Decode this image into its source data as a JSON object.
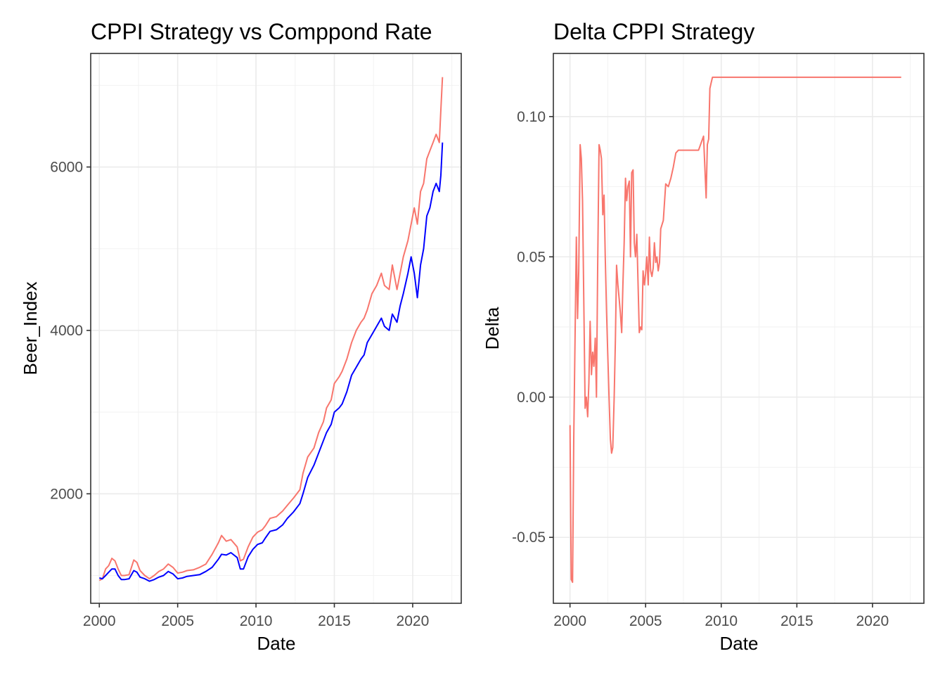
{
  "chart_data": [
    {
      "type": "line",
      "title": "CPPI Strategy vs Comppond Rate",
      "xlabel": "Date",
      "ylabel": "Beer_Index",
      "xlim": [
        1999.45,
        2023.1
      ],
      "ylim": [
        660,
        7390
      ],
      "x_ticks": [
        2000,
        2005,
        2010,
        2015,
        2020
      ],
      "x_tick_labels": [
        "2000",
        "2005",
        "2010",
        "2015",
        "2020"
      ],
      "y_ticks": [
        2000,
        4000,
        6000
      ],
      "y_tick_labels": [
        "2000",
        "4000",
        "6000"
      ],
      "grid": true,
      "colors": {
        "red": "#f8766d",
        "blue": "#0000ff"
      },
      "series": [
        {
          "color": "#f8766d",
          "x": [
            2000.0,
            2000.2,
            2000.4,
            2000.6,
            2000.8,
            2001.0,
            2001.2,
            2001.4,
            2001.6,
            2001.9,
            2002.2,
            2002.4,
            2002.6,
            2002.9,
            2003.2,
            2003.5,
            2003.8,
            2004.1,
            2004.4,
            2004.7,
            2005.0,
            2005.3,
            2005.6,
            2006.0,
            2006.4,
            2006.8,
            2007.2,
            2007.6,
            2007.8,
            2008.1,
            2008.4,
            2008.8,
            2009.0,
            2009.2,
            2009.5,
            2009.8,
            2010.1,
            2010.4,
            2010.6,
            2010.9,
            2011.3,
            2011.7,
            2012.0,
            2012.4,
            2012.8,
            2013.0,
            2013.3,
            2013.7,
            2014.0,
            2014.3,
            2014.5,
            2014.8,
            2015.0,
            2015.3,
            2015.5,
            2015.8,
            2016.1,
            2016.4,
            2016.7,
            2016.9,
            2017.1,
            2017.4,
            2017.7,
            2018.0,
            2018.2,
            2018.5,
            2018.7,
            2019.0,
            2019.2,
            2019.4,
            2019.7,
            2019.9,
            2020.1,
            2020.3,
            2020.5,
            2020.7,
            2020.9,
            2021.1,
            2021.3,
            2021.5,
            2021.7,
            2021.8,
            2021.9
          ],
          "y": [
            940,
            960,
            1080,
            1120,
            1210,
            1180,
            1080,
            1000,
            1000,
            1010,
            1190,
            1160,
            1060,
            1000,
            960,
            1000,
            1050,
            1080,
            1140,
            1100,
            1030,
            1040,
            1060,
            1070,
            1100,
            1140,
            1260,
            1400,
            1490,
            1420,
            1440,
            1350,
            1180,
            1200,
            1350,
            1470,
            1530,
            1560,
            1610,
            1700,
            1720,
            1790,
            1860,
            1950,
            2050,
            2250,
            2450,
            2560,
            2750,
            2880,
            3050,
            3150,
            3350,
            3430,
            3500,
            3650,
            3850,
            4000,
            4100,
            4150,
            4250,
            4450,
            4550,
            4700,
            4550,
            4500,
            4800,
            4500,
            4700,
            4900,
            5100,
            5300,
            5500,
            5300,
            5700,
            5800,
            6100,
            6200,
            6300,
            6400,
            6300,
            6700,
            7100
          ]
        },
        {
          "color": "#0000ff",
          "x": [
            2000.0,
            2000.2,
            2000.4,
            2000.6,
            2000.8,
            2001.0,
            2001.2,
            2001.4,
            2001.6,
            2001.9,
            2002.2,
            2002.4,
            2002.6,
            2002.9,
            2003.2,
            2003.5,
            2003.8,
            2004.1,
            2004.4,
            2004.7,
            2005.0,
            2005.3,
            2005.6,
            2006.0,
            2006.4,
            2006.8,
            2007.2,
            2007.6,
            2007.8,
            2008.1,
            2008.4,
            2008.8,
            2009.0,
            2009.2,
            2009.5,
            2009.8,
            2010.1,
            2010.4,
            2010.6,
            2010.9,
            2011.3,
            2011.7,
            2012.0,
            2012.4,
            2012.8,
            2013.0,
            2013.3,
            2013.7,
            2014.0,
            2014.3,
            2014.5,
            2014.8,
            2015.0,
            2015.3,
            2015.5,
            2015.8,
            2016.1,
            2016.4,
            2016.7,
            2016.9,
            2017.1,
            2017.4,
            2017.7,
            2018.0,
            2018.2,
            2018.5,
            2018.7,
            2019.0,
            2019.2,
            2019.4,
            2019.7,
            2019.9,
            2020.1,
            2020.3,
            2020.5,
            2020.7,
            2020.9,
            2021.1,
            2021.3,
            2021.5,
            2021.7,
            2021.8,
            2021.9
          ],
          "y": [
            970,
            960,
            1000,
            1040,
            1080,
            1080,
            1000,
            950,
            950,
            960,
            1060,
            1040,
            980,
            960,
            930,
            950,
            980,
            1000,
            1050,
            1020,
            960,
            970,
            990,
            1000,
            1010,
            1050,
            1100,
            1200,
            1260,
            1250,
            1280,
            1220,
            1080,
            1080,
            1230,
            1320,
            1380,
            1400,
            1460,
            1540,
            1560,
            1620,
            1700,
            1780,
            1880,
            2000,
            2200,
            2350,
            2500,
            2650,
            2750,
            2850,
            3000,
            3050,
            3100,
            3250,
            3450,
            3550,
            3650,
            3700,
            3850,
            3950,
            4050,
            4150,
            4050,
            4000,
            4200,
            4100,
            4300,
            4450,
            4700,
            4900,
            4700,
            4400,
            4800,
            5000,
            5400,
            5500,
            5700,
            5800,
            5700,
            5900,
            6300
          ]
        }
      ]
    },
    {
      "type": "line",
      "title": "Delta CPPI Strategy",
      "xlabel": "Date",
      "ylabel": "Delta",
      "xlim": [
        1998.9,
        2023.4
      ],
      "ylim": [
        -0.0735,
        0.1225
      ],
      "x_ticks": [
        2000,
        2005,
        2010,
        2015,
        2020
      ],
      "x_tick_labels": [
        "2000",
        "2005",
        "2010",
        "2015",
        "2020"
      ],
      "y_ticks": [
        -0.05,
        0.0,
        0.05,
        0.1
      ],
      "y_tick_labels": [
        "-0.05",
        "0.00",
        "0.05",
        "0.10"
      ],
      "grid": true,
      "colors": {
        "red": "#f8766d"
      },
      "series": [
        {
          "color": "#f8766d",
          "x": [
            2000.0,
            2000.08,
            2000.17,
            2000.25,
            2000.33,
            2000.42,
            2000.5,
            2000.58,
            2000.67,
            2000.75,
            2000.83,
            2000.92,
            2001.0,
            2001.08,
            2001.17,
            2001.25,
            2001.33,
            2001.42,
            2001.5,
            2001.58,
            2001.67,
            2001.75,
            2001.83,
            2001.92,
            2002.0,
            2002.08,
            2002.17,
            2002.25,
            2002.33,
            2002.42,
            2002.5,
            2002.58,
            2002.67,
            2002.75,
            2002.83,
            2002.92,
            2003.0,
            2003.08,
            2003.17,
            2003.25,
            2003.33,
            2003.42,
            2003.5,
            2003.58,
            2003.67,
            2003.75,
            2003.83,
            2003.92,
            2004.0,
            2004.08,
            2004.17,
            2004.25,
            2004.33,
            2004.42,
            2004.5,
            2004.58,
            2004.67,
            2004.75,
            2004.83,
            2004.92,
            2005.0,
            2005.08,
            2005.17,
            2005.25,
            2005.33,
            2005.42,
            2005.5,
            2005.58,
            2005.67,
            2005.75,
            2005.83,
            2005.92,
            2006.0,
            2006.17,
            2006.33,
            2006.5,
            2006.67,
            2006.83,
            2007.0,
            2007.17,
            2007.33,
            2007.5,
            2007.67,
            2007.83,
            2008.0,
            2008.5,
            2008.83,
            2009.0,
            2009.08,
            2009.17,
            2009.25,
            2009.33,
            2009.42,
            2009.5,
            2009.67,
            2009.83,
            2010.0,
            2015.0,
            2020.0,
            2021.9
          ],
          "y": [
            -0.01,
            -0.065,
            -0.066,
            -0.015,
            0.02,
            0.057,
            0.028,
            0.045,
            0.09,
            0.085,
            0.07,
            0.03,
            -0.004,
            0.0,
            -0.007,
            0.005,
            0.027,
            0.008,
            0.016,
            0.011,
            0.021,
            0.0,
            0.046,
            0.09,
            0.088,
            0.085,
            0.065,
            0.072,
            0.05,
            0.03,
            0.015,
            0.0,
            -0.015,
            -0.02,
            -0.018,
            0.0,
            0.02,
            0.047,
            0.04,
            0.035,
            0.03,
            0.023,
            0.04,
            0.055,
            0.078,
            0.07,
            0.075,
            0.077,
            0.05,
            0.08,
            0.081,
            0.055,
            0.05,
            0.058,
            0.04,
            0.023,
            0.025,
            0.024,
            0.045,
            0.04,
            0.044,
            0.05,
            0.04,
            0.057,
            0.045,
            0.043,
            0.046,
            0.055,
            0.048,
            0.05,
            0.045,
            0.048,
            0.06,
            0.063,
            0.076,
            0.075,
            0.078,
            0.082,
            0.087,
            0.088,
            0.088,
            0.088,
            0.088,
            0.088,
            0.088,
            0.088,
            0.093,
            0.071,
            0.09,
            0.092,
            0.11,
            0.112,
            0.114,
            0.114,
            0.114,
            0.114,
            0.114,
            0.114,
            0.114,
            0.114
          ]
        }
      ]
    }
  ]
}
